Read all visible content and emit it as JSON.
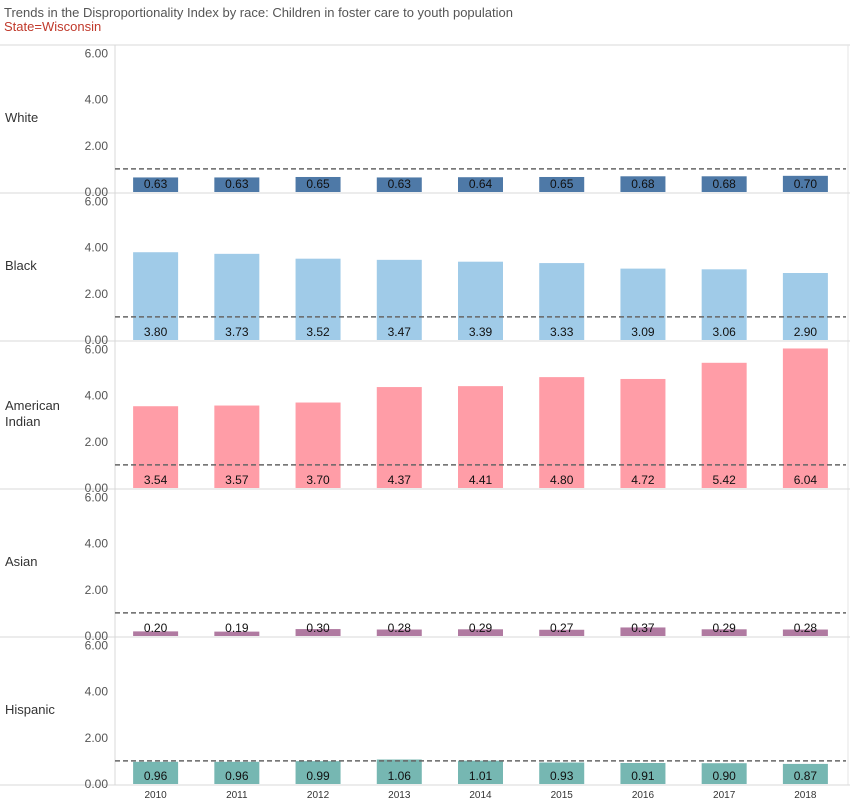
{
  "title": "Trends in the Disproportionality Index by race: Children in foster care to youth population",
  "filter": "State=Wisconsin",
  "colors": {
    "White": "#4e79a7",
    "Black": "#a0cbe8",
    "American Indian": "#ff9da7",
    "Asian": "#b07aa1",
    "Hispanic": "#76b7b2"
  },
  "chart_data": {
    "type": "bar",
    "categories": [
      "2010",
      "2011",
      "2012",
      "2013",
      "2014",
      "2015",
      "2016",
      "2017",
      "2018"
    ],
    "yticks": [
      "0.00",
      "2.00",
      "4.00",
      "6.00"
    ],
    "ylim": [
      0,
      6.3
    ],
    "reference_line": 1.0,
    "series": [
      {
        "name": "White",
        "label_lines": [
          "White"
        ],
        "values": [
          0.63,
          0.63,
          0.65,
          0.63,
          0.64,
          0.65,
          0.68,
          0.68,
          0.7
        ],
        "labels": [
          "0.63",
          "0.63",
          "0.65",
          "0.63",
          "0.64",
          "0.65",
          "0.68",
          "0.68",
          "0.70"
        ]
      },
      {
        "name": "Black",
        "label_lines": [
          "Black"
        ],
        "values": [
          3.8,
          3.73,
          3.52,
          3.47,
          3.39,
          3.33,
          3.09,
          3.06,
          2.9
        ],
        "labels": [
          "3.80",
          "3.73",
          "3.52",
          "3.47",
          "3.39",
          "3.33",
          "3.09",
          "3.06",
          "2.90"
        ]
      },
      {
        "name": "American Indian",
        "label_lines": [
          "American",
          "Indian"
        ],
        "values": [
          3.54,
          3.57,
          3.7,
          4.37,
          4.41,
          4.8,
          4.72,
          5.42,
          6.04
        ],
        "labels": [
          "3.54",
          "3.57",
          "3.70",
          "4.37",
          "4.41",
          "4.80",
          "4.72",
          "5.42",
          "6.04"
        ]
      },
      {
        "name": "Asian",
        "label_lines": [
          "Asian"
        ],
        "values": [
          0.2,
          0.19,
          0.3,
          0.28,
          0.29,
          0.27,
          0.37,
          0.29,
          0.28
        ],
        "labels": [
          "0.20",
          "0.19",
          "0.30",
          "0.28",
          "0.29",
          "0.27",
          "0.37",
          "0.29",
          "0.28"
        ]
      },
      {
        "name": "Hispanic",
        "label_lines": [
          "Hispanic"
        ],
        "values": [
          0.96,
          0.96,
          0.99,
          1.06,
          1.01,
          0.93,
          0.91,
          0.9,
          0.87
        ],
        "labels": [
          "0.96",
          "0.96",
          "0.99",
          "1.06",
          "1.01",
          "0.93",
          "0.91",
          "0.90",
          "0.87"
        ]
      }
    ]
  }
}
